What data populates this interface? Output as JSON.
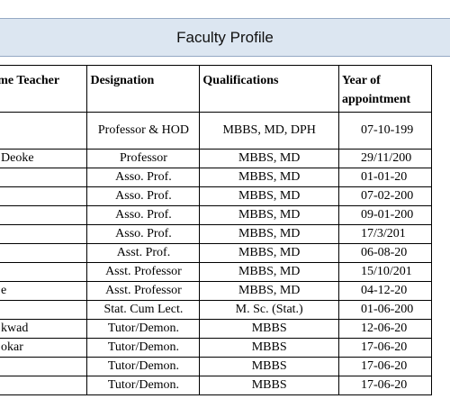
{
  "header": {
    "title": "Faculty Profile"
  },
  "table": {
    "columns": [
      "-time Teacher",
      "Designation",
      "Qualifications",
      "Year of appointment"
    ],
    "rows": [
      [
        null,
        "Professor & HOD",
        "MBBS, MD, DPH",
        "07-10-199"
      ],
      [
        "Deoke",
        "Professor",
        "MBBS, MD",
        "29/11/200"
      ],
      [
        null,
        "Asso. Prof.",
        "MBBS, MD",
        "01-01-20"
      ],
      [
        null,
        "Asso. Prof.",
        "MBBS, MD",
        "07-02-200"
      ],
      [
        null,
        "Asso. Prof.",
        "MBBS, MD",
        "09-01-200"
      ],
      [
        null,
        "Asso. Prof.",
        "MBBS, MD",
        "17/3/201"
      ],
      [
        null,
        "Asst. Prof.",
        "MBBS, MD",
        "06-08-20"
      ],
      [
        null,
        "Asst. Professor",
        "MBBS, MD",
        "15/10/201"
      ],
      [
        "e",
        "Asst. Professor",
        "MBBS, MD",
        "04-12-20"
      ],
      [
        null,
        "Stat. Cum Lect.",
        "M. Sc. (Stat.)",
        "01-06-200"
      ],
      [
        "kwad",
        "Tutor/Demon.",
        "MBBS",
        "12-06-20"
      ],
      [
        "okar",
        "Tutor/Demon.",
        "MBBS",
        "17-06-20"
      ],
      [
        null,
        "Tutor/Demon.",
        "MBBS",
        "17-06-20"
      ],
      [
        null,
        "Tutor/Demon.",
        "MBBS",
        "17-06-20"
      ]
    ]
  }
}
